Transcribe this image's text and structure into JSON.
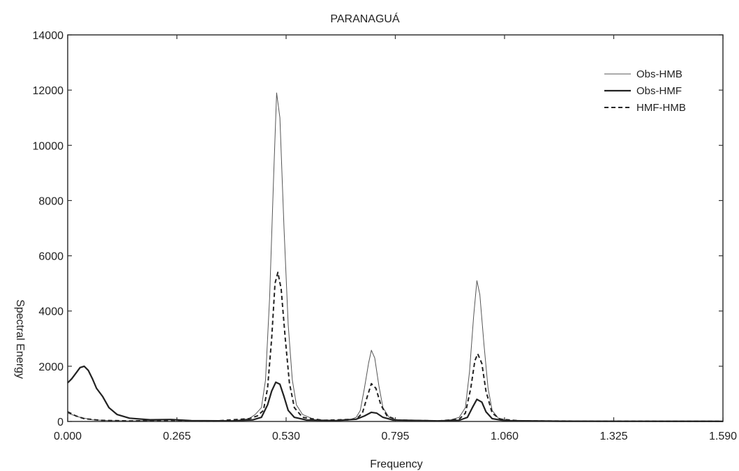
{
  "chart_data": {
    "type": "line",
    "title": "PARANAGUÁ",
    "xlabel": "Frequency",
    "ylabel": "Spectral Energy",
    "xlim": [
      0,
      1.59
    ],
    "ylim": [
      0,
      14000
    ],
    "x_ticks": [
      "0.000",
      "0.265",
      "0.530",
      "0.795",
      "1.060",
      "1.325",
      "1.590"
    ],
    "x_tick_values": [
      0,
      0.265,
      0.53,
      0.795,
      1.06,
      1.325,
      1.59
    ],
    "y_ticks": [
      "0",
      "2000",
      "4000",
      "6000",
      "8000",
      "10000",
      "12000",
      "14000"
    ],
    "y_tick_values": [
      0,
      2000,
      4000,
      6000,
      8000,
      10000,
      12000,
      14000
    ],
    "grid": false,
    "legend_position": "top-right",
    "series": [
      {
        "name": "Obs-HMB",
        "style": "thin",
        "points": [
          [
            0,
            300
          ],
          [
            0.03,
            150
          ],
          [
            0.06,
            60
          ],
          [
            0.1,
            30
          ],
          [
            0.15,
            20
          ],
          [
            0.2,
            30
          ],
          [
            0.245,
            60
          ],
          [
            0.265,
            70
          ],
          [
            0.29,
            30
          ],
          [
            0.35,
            10
          ],
          [
            0.4,
            20
          ],
          [
            0.44,
            100
          ],
          [
            0.455,
            250
          ],
          [
            0.47,
            500
          ],
          [
            0.48,
            1500
          ],
          [
            0.49,
            4500
          ],
          [
            0.5,
            9000
          ],
          [
            0.507,
            11900
          ],
          [
            0.515,
            11000
          ],
          [
            0.525,
            7000
          ],
          [
            0.535,
            3500
          ],
          [
            0.545,
            1500
          ],
          [
            0.555,
            600
          ],
          [
            0.57,
            250
          ],
          [
            0.6,
            60
          ],
          [
            0.65,
            30
          ],
          [
            0.68,
            40
          ],
          [
            0.7,
            150
          ],
          [
            0.71,
            400
          ],
          [
            0.72,
            1200
          ],
          [
            0.73,
            2100
          ],
          [
            0.737,
            2580
          ],
          [
            0.745,
            2300
          ],
          [
            0.755,
            1300
          ],
          [
            0.765,
            500
          ],
          [
            0.78,
            150
          ],
          [
            0.8,
            50
          ],
          [
            0.85,
            20
          ],
          [
            0.9,
            20
          ],
          [
            0.93,
            60
          ],
          [
            0.95,
            150
          ],
          [
            0.965,
            500
          ],
          [
            0.975,
            1800
          ],
          [
            0.985,
            3800
          ],
          [
            0.993,
            5100
          ],
          [
            1.0,
            4600
          ],
          [
            1.01,
            2800
          ],
          [
            1.02,
            1200
          ],
          [
            1.03,
            400
          ],
          [
            1.045,
            120
          ],
          [
            1.07,
            40
          ],
          [
            1.15,
            20
          ],
          [
            1.3,
            10
          ],
          [
            1.45,
            10
          ],
          [
            1.59,
            5
          ]
        ]
      },
      {
        "name": "Obs-HMF",
        "style": "thick",
        "points": [
          [
            0,
            1400
          ],
          [
            0.01,
            1550
          ],
          [
            0.02,
            1750
          ],
          [
            0.03,
            1950
          ],
          [
            0.04,
            2000
          ],
          [
            0.05,
            1850
          ],
          [
            0.06,
            1550
          ],
          [
            0.07,
            1200
          ],
          [
            0.085,
            900
          ],
          [
            0.1,
            500
          ],
          [
            0.12,
            250
          ],
          [
            0.15,
            120
          ],
          [
            0.2,
            60
          ],
          [
            0.25,
            70
          ],
          [
            0.3,
            30
          ],
          [
            0.4,
            20
          ],
          [
            0.45,
            60
          ],
          [
            0.47,
            150
          ],
          [
            0.485,
            600
          ],
          [
            0.495,
            1100
          ],
          [
            0.505,
            1420
          ],
          [
            0.515,
            1350
          ],
          [
            0.525,
            900
          ],
          [
            0.535,
            400
          ],
          [
            0.55,
            150
          ],
          [
            0.58,
            50
          ],
          [
            0.65,
            30
          ],
          [
            0.7,
            80
          ],
          [
            0.72,
            200
          ],
          [
            0.737,
            330
          ],
          [
            0.75,
            300
          ],
          [
            0.765,
            150
          ],
          [
            0.79,
            50
          ],
          [
            0.9,
            20
          ],
          [
            0.95,
            40
          ],
          [
            0.97,
            150
          ],
          [
            0.982,
            500
          ],
          [
            0.993,
            800
          ],
          [
            1.005,
            700
          ],
          [
            1.015,
            350
          ],
          [
            1.03,
            100
          ],
          [
            1.06,
            30
          ],
          [
            1.2,
            10
          ],
          [
            1.59,
            5
          ]
        ]
      },
      {
        "name": "HMF-HMB",
        "style": "dashed",
        "points": [
          [
            0,
            350
          ],
          [
            0.02,
            200
          ],
          [
            0.04,
            100
          ],
          [
            0.08,
            40
          ],
          [
            0.15,
            20
          ],
          [
            0.25,
            40
          ],
          [
            0.35,
            10
          ],
          [
            0.44,
            100
          ],
          [
            0.46,
            200
          ],
          [
            0.475,
            400
          ],
          [
            0.485,
            1200
          ],
          [
            0.495,
            3000
          ],
          [
            0.503,
            5000
          ],
          [
            0.51,
            5400
          ],
          [
            0.518,
            4800
          ],
          [
            0.528,
            3000
          ],
          [
            0.538,
            1400
          ],
          [
            0.55,
            500
          ],
          [
            0.57,
            150
          ],
          [
            0.62,
            40
          ],
          [
            0.7,
            80
          ],
          [
            0.715,
            300
          ],
          [
            0.727,
            900
          ],
          [
            0.737,
            1370
          ],
          [
            0.748,
            1200
          ],
          [
            0.76,
            600
          ],
          [
            0.775,
            200
          ],
          [
            0.8,
            50
          ],
          [
            0.9,
            20
          ],
          [
            0.95,
            80
          ],
          [
            0.965,
            300
          ],
          [
            0.978,
            1200
          ],
          [
            0.988,
            2200
          ],
          [
            0.995,
            2450
          ],
          [
            1.005,
            2100
          ],
          [
            1.015,
            1100
          ],
          [
            1.03,
            300
          ],
          [
            1.05,
            80
          ],
          [
            1.1,
            20
          ],
          [
            1.3,
            10
          ],
          [
            1.59,
            5
          ]
        ]
      }
    ]
  }
}
